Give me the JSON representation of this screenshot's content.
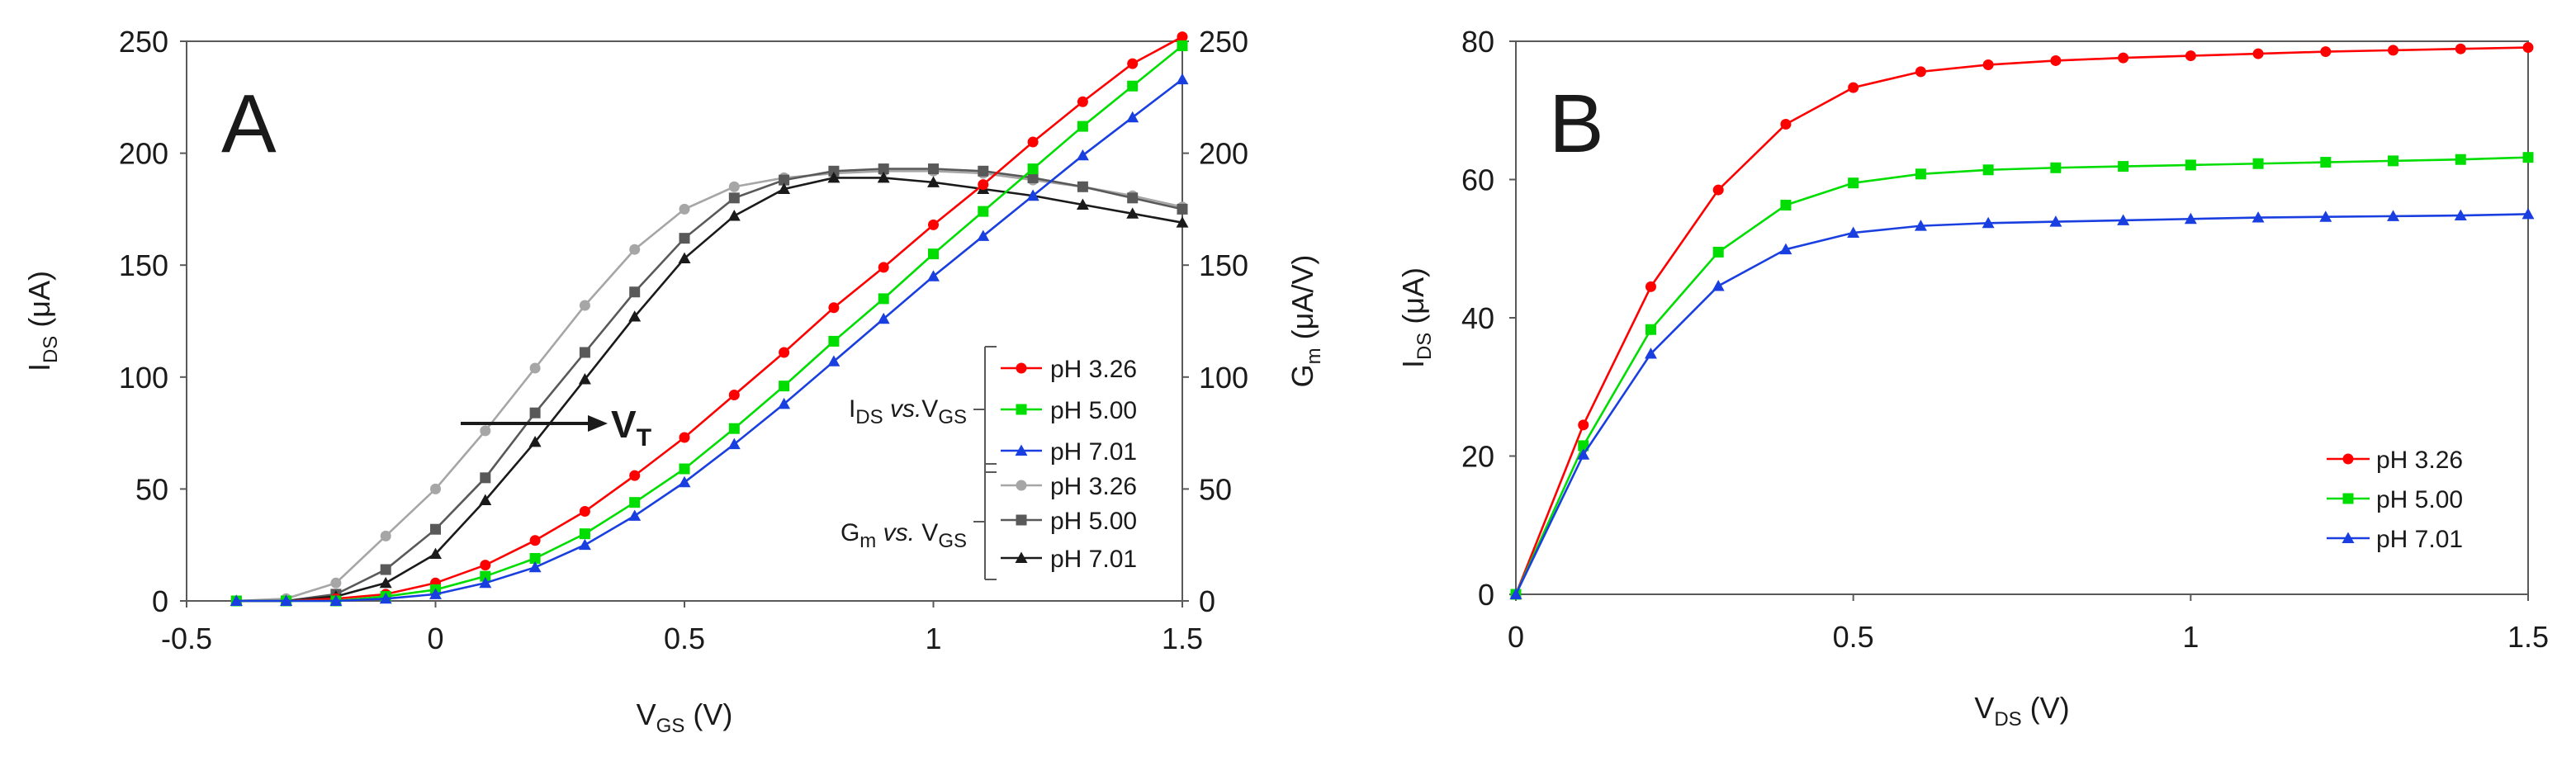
{
  "colors": {
    "red": "#ff0000",
    "green": "#00dd00",
    "blue": "#1a3fe0",
    "lightgray": "#a6a6a6",
    "darkgray": "#595959",
    "black": "#1a1a1a"
  },
  "chart_data": [
    {
      "type": "line",
      "panel_label": "A",
      "xlabel": {
        "main": "V",
        "sub": "GS",
        "unit": " (V)"
      },
      "ylabel_left": {
        "main": "I",
        "sub": "DS",
        "unit": " (μA)"
      },
      "ylabel_right": {
        "main": "G",
        "sub": "m",
        "unit": " (μA/V)"
      },
      "xlim": [
        -0.5,
        1.5
      ],
      "ylim_left": [
        0,
        250
      ],
      "ylim_right": [
        0,
        250
      ],
      "xticks": [
        -0.5,
        0,
        0.5,
        1,
        1.5
      ],
      "xtick_labels": [
        "-0.5",
        "0",
        "0.5",
        "1",
        "1.5"
      ],
      "yticks_left": [
        0,
        50,
        100,
        150,
        200,
        250
      ],
      "ytick_labels_left": [
        "0",
        "50",
        "100",
        "150",
        "200",
        "250"
      ],
      "yticks_right": [
        0,
        50,
        100,
        150,
        200,
        250
      ],
      "ytick_labels_right": [
        "0",
        "50",
        "100",
        "150",
        "200",
        "250"
      ],
      "x": [
        -0.4,
        -0.3,
        -0.2,
        -0.1,
        0,
        0.1,
        0.2,
        0.3,
        0.4,
        0.5,
        0.6,
        0.7,
        0.8,
        0.9,
        1.0,
        1.1,
        1.2,
        1.3,
        1.4,
        1.5
      ],
      "series": [
        {
          "name": "pH 3.26",
          "group": "IDS vs. VGS",
          "axis": "left",
          "color": "red",
          "marker": "circle",
          "values": [
            0,
            0,
            1,
            3,
            8,
            16,
            27,
            40,
            56,
            73,
            92,
            111,
            131,
            149,
            168,
            186,
            205,
            223,
            240,
            252
          ]
        },
        {
          "name": "pH 5.00",
          "group": "IDS vs. VGS",
          "axis": "left",
          "color": "green",
          "marker": "square",
          "values": [
            0,
            0,
            0,
            2,
            5,
            11,
            19,
            30,
            44,
            59,
            77,
            96,
            116,
            135,
            155,
            174,
            193,
            212,
            230,
            248
          ]
        },
        {
          "name": "pH 7.01",
          "group": "IDS vs. VGS",
          "axis": "left",
          "color": "blue",
          "marker": "triangle",
          "values": [
            0,
            0,
            0,
            1,
            3,
            8,
            15,
            25,
            38,
            53,
            70,
            88,
            107,
            126,
            145,
            163,
            181,
            199,
            216,
            233
          ]
        },
        {
          "name": "pH 3.26",
          "group": "Gm vs. VGS",
          "axis": "right",
          "color": "lightgray",
          "marker": "circle",
          "values": [
            0,
            1,
            8,
            29,
            50,
            76,
            104,
            132,
            157,
            175,
            185,
            189,
            191,
            192,
            192,
            191,
            188,
            185,
            181,
            176
          ]
        },
        {
          "name": "pH 5.00",
          "group": "Gm vs. VGS",
          "axis": "right",
          "color": "darkgray",
          "marker": "square",
          "values": [
            0,
            0,
            3,
            14,
            32,
            55,
            84,
            111,
            138,
            162,
            180,
            188,
            192,
            193,
            193,
            192,
            189,
            185,
            180,
            175
          ]
        },
        {
          "name": "pH 7.01",
          "group": "Gm vs. VGS",
          "axis": "right",
          "color": "black",
          "marker": "triangle",
          "values": [
            0,
            0,
            2,
            8,
            21,
            45,
            71,
            99,
            127,
            153,
            172,
            184,
            189,
            189,
            187,
            184,
            181,
            177,
            173,
            169
          ]
        }
      ],
      "annotation": {
        "main": "V",
        "sub": "T"
      },
      "legend": {
        "position": "bottom-right",
        "groups": [
          {
            "label_main": "I",
            "label_sub": "DS",
            "label_italic": " vs.",
            "label_main2": "V",
            "label_sub2": "GS",
            "entries": [
              0,
              1,
              2
            ]
          },
          {
            "label_main": "G",
            "label_sub": "m",
            "label_italic": " vs.",
            "label_main2": " V",
            "label_sub2": "GS",
            "entries": [
              3,
              4,
              5
            ]
          }
        ]
      }
    },
    {
      "type": "line",
      "panel_label": "B",
      "xlabel": {
        "main": "V",
        "sub": "DS",
        "unit": " (V)"
      },
      "ylabel_left": {
        "main": "I",
        "sub": "DS",
        "unit": " (μA)"
      },
      "xlim": [
        0,
        1.5
      ],
      "ylim_left": [
        0,
        80
      ],
      "xticks": [
        0,
        0.5,
        1,
        1.5
      ],
      "xtick_labels": [
        "0",
        "0.5",
        "1",
        "1.5"
      ],
      "yticks_left": [
        0,
        20,
        40,
        60,
        80
      ],
      "ytick_labels_left": [
        "0",
        "20",
        "40",
        "60",
        "80"
      ],
      "x": [
        0,
        0.1,
        0.2,
        0.3,
        0.4,
        0.5,
        0.6,
        0.7,
        0.8,
        0.9,
        1.0,
        1.1,
        1.2,
        1.3,
        1.4,
        1.5
      ],
      "series": [
        {
          "name": "pH 3.26",
          "color": "red",
          "marker": "circle",
          "values": [
            0,
            24.5,
            44.5,
            58.5,
            68,
            73.3,
            75.6,
            76.6,
            77.2,
            77.6,
            77.9,
            78.2,
            78.5,
            78.7,
            78.9,
            79.1
          ]
        },
        {
          "name": "pH 5.00",
          "color": "green",
          "marker": "square",
          "values": [
            0,
            21.5,
            38.3,
            49.5,
            56.3,
            59.5,
            60.8,
            61.4,
            61.7,
            61.9,
            62.1,
            62.3,
            62.5,
            62.7,
            62.9,
            63.2
          ]
        },
        {
          "name": "pH 7.01",
          "color": "blue",
          "marker": "triangle",
          "values": [
            0,
            20.2,
            34.8,
            44.6,
            49.9,
            52.3,
            53.3,
            53.7,
            53.9,
            54.1,
            54.3,
            54.5,
            54.6,
            54.7,
            54.8,
            55.0
          ]
        }
      ],
      "legend": {
        "position": "bottom-right"
      }
    }
  ]
}
